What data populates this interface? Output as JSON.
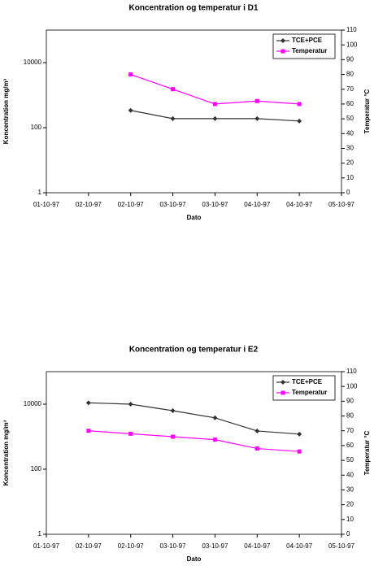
{
  "chart_data": [
    {
      "type": "line",
      "title": "Koncentration og temperatur i D1",
      "x_label": "Dato",
      "y_label": "Koncentration mg/m³",
      "y2_label": "Temperatur °C",
      "categories": [
        "01-10-97",
        "02-10-97",
        "02-10-97",
        "03-10-97",
        "03-10-97",
        "04-10-97",
        "04-10-97",
        "05-10-97"
      ],
      "series": [
        {
          "name": "TCE+PCE",
          "color": "#333333",
          "marker": "diamond",
          "values": [
            null,
            null,
            340,
            190,
            190,
            190,
            160,
            null
          ]
        },
        {
          "name": "Temperatur",
          "color": "#ff00ff",
          "marker": "square",
          "axis": "y2",
          "values": [
            null,
            null,
            80,
            70,
            60,
            62,
            60,
            null
          ]
        }
      ],
      "ylim": [
        1,
        100000
      ],
      "yticks": [
        1,
        100,
        10000
      ],
      "log_y": true,
      "y2lim": [
        0,
        110
      ],
      "y2ticks": [
        0,
        10,
        20,
        30,
        40,
        50,
        60,
        70,
        80,
        90,
        100,
        110
      ],
      "legend": "upper right"
    },
    {
      "type": "line",
      "title": "Koncentration og temperatur i E2",
      "x_label": "Dato",
      "y_label": "Koncentration mg/m³",
      "y2_label": "Temperatur °C",
      "categories": [
        "01-10-97",
        "02-10-97",
        "02-10-97",
        "03-10-97",
        "03-10-97",
        "04-10-97",
        "04-10-97",
        "05-10-97"
      ],
      "series": [
        {
          "name": "TCE+PCE",
          "color": "#333333",
          "marker": "diamond",
          "values": [
            null,
            11000,
            10000,
            6300,
            3800,
            1500,
            1200,
            null
          ]
        },
        {
          "name": "Temperatur",
          "color": "#ff00ff",
          "marker": "square",
          "axis": "y2",
          "values": [
            null,
            70,
            68,
            66,
            64,
            58,
            56,
            null
          ]
        }
      ],
      "ylim": [
        1,
        100000
      ],
      "yticks": [
        1,
        100,
        10000
      ],
      "log_y": true,
      "y2lim": [
        0,
        110
      ],
      "y2ticks": [
        0,
        10,
        20,
        30,
        40,
        50,
        60,
        70,
        80,
        90,
        100,
        110
      ],
      "legend": "upper right"
    }
  ]
}
